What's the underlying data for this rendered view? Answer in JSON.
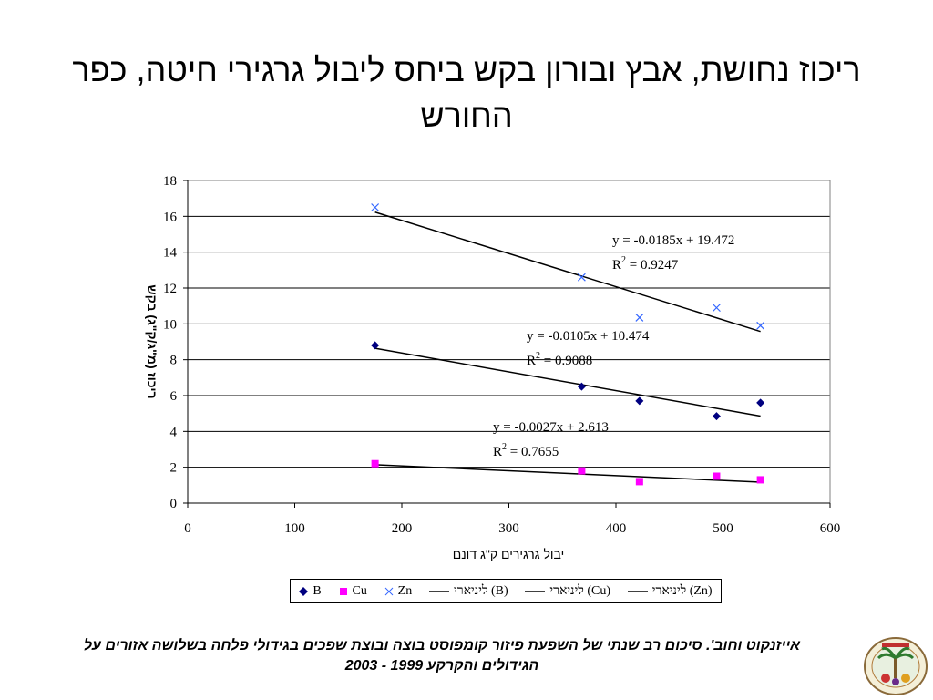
{
  "title": "ריכוז נחושת, אבץ ובורון בקש ביחס ליבול גרגירי חיטה, כפר החורש",
  "caption": "אייזנקוט וחוב'. סיכום רב שנתי של השפעת פיזור קומפוסט בוצה ובוצת שפכים בגידולי פלחה בשלושה אזורים על הגידולים והקרקע 1999 - 2003",
  "colors": {
    "B": "#000080",
    "Cu": "#ff00ff",
    "Zn": "#3366ff",
    "trend": "#000000",
    "grid": "#000000"
  },
  "chart_data": {
    "type": "scatter",
    "xlabel": "יבול גרגירים ק\"ג דונם",
    "ylabel": "ריכוז (מ\"ג/ק\"ג) בקש",
    "xlim": [
      0,
      600
    ],
    "ylim": [
      0,
      18
    ],
    "xticks": [
      0,
      100,
      200,
      300,
      400,
      500,
      600
    ],
    "yticks": [
      0,
      2,
      4,
      6,
      8,
      10,
      12,
      14,
      16,
      18
    ],
    "grid": "horizontal",
    "legend_position": "bottom",
    "series": [
      {
        "name": "B",
        "marker": "diamond",
        "x": [
          175,
          368,
          422,
          494,
          535
        ],
        "y": [
          8.8,
          6.5,
          5.7,
          4.85,
          5.6
        ]
      },
      {
        "name": "Cu",
        "marker": "square",
        "x": [
          175,
          368,
          422,
          494,
          535
        ],
        "y": [
          2.2,
          1.8,
          1.2,
          1.5,
          1.3
        ]
      },
      {
        "name": "Zn",
        "marker": "x",
        "x": [
          175,
          368,
          422,
          494,
          535
        ],
        "y": [
          16.5,
          12.6,
          10.35,
          10.9,
          9.9
        ]
      }
    ],
    "trendlines": [
      {
        "name": "ליניארי (B)",
        "series": "B",
        "slope": -0.0105,
        "intercept": 10.474,
        "equation": "y = -0.0105x + 10.474",
        "r2_label": "R",
        "r2_sup": "2",
        "r2_value": " = 0.9088",
        "range": [
          175,
          535
        ]
      },
      {
        "name": "ליניארי (Cu)",
        "series": "Cu",
        "slope": -0.0027,
        "intercept": 2.613,
        "equation": "y = -0.0027x + 2.613",
        "r2_label": "R",
        "r2_sup": "2",
        "r2_value": " = 0.7655",
        "range": [
          175,
          535
        ]
      },
      {
        "name": "ליניארי (Zn)",
        "series": "Zn",
        "slope": -0.0185,
        "intercept": 19.472,
        "equation": "y = -0.0185x + 19.472",
        "r2_label": "R",
        "r2_sup": "2",
        "r2_value": " = 0.9247",
        "range": [
          175,
          535
        ]
      }
    ]
  },
  "legend": {
    "items": [
      {
        "label": "B",
        "kind": "diamond",
        "color_key": "B"
      },
      {
        "label": "Cu",
        "kind": "square",
        "color_key": "Cu"
      },
      {
        "label": "Zn",
        "kind": "x",
        "color_key": "Zn"
      },
      {
        "label": "ליניארי (B)",
        "kind": "line",
        "color_key": "trend"
      },
      {
        "label": "ליניארי (Cu)",
        "kind": "line",
        "color_key": "trend"
      },
      {
        "label": "ליניארי (Zn)",
        "kind": "line",
        "color_key": "trend"
      }
    ]
  }
}
